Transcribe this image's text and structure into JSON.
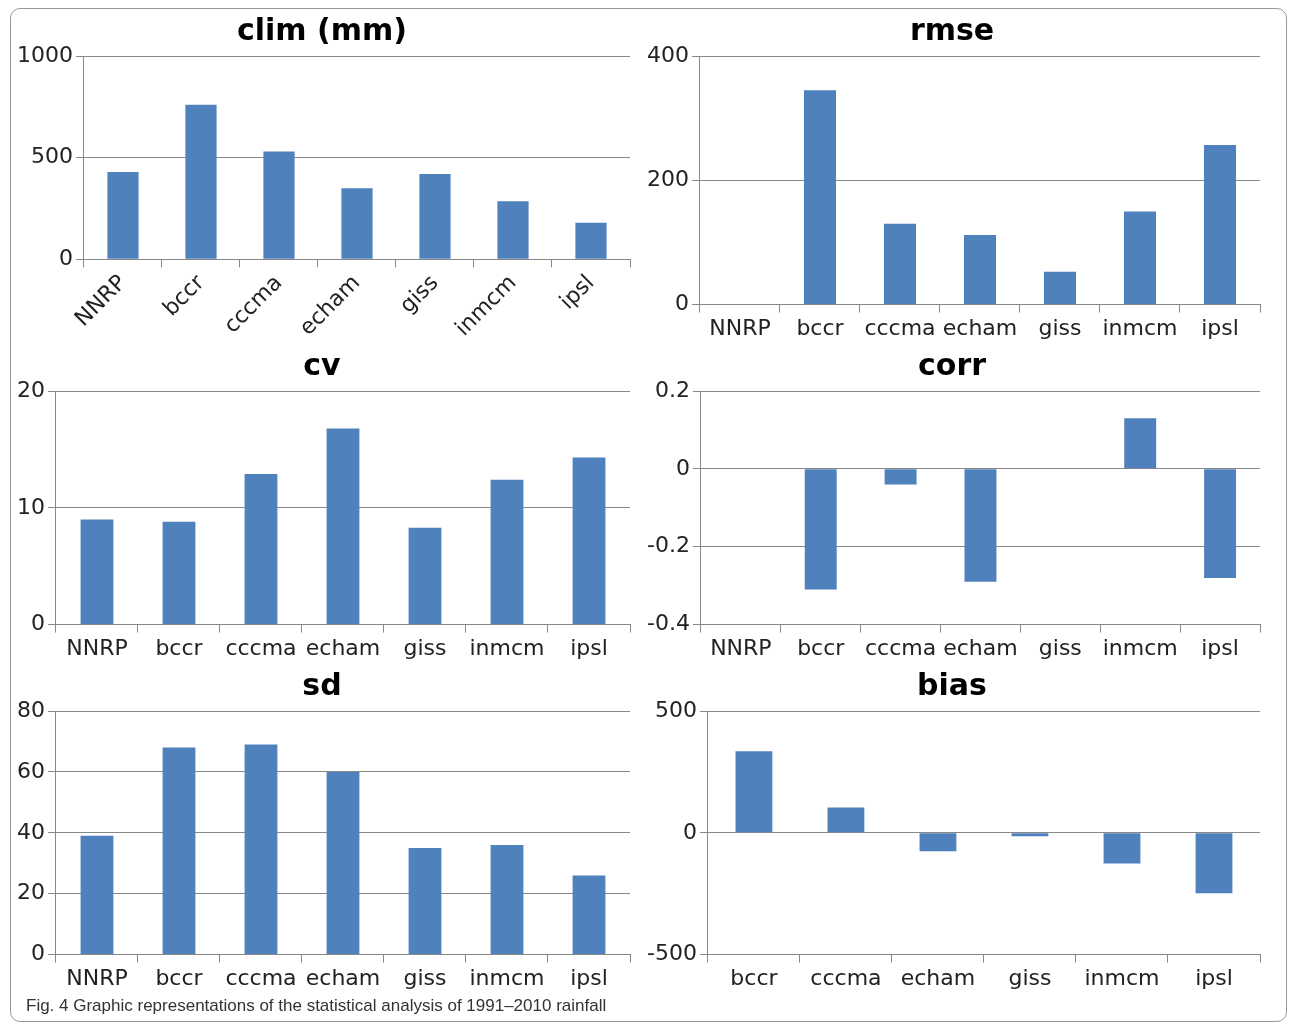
{
  "chart_data": [
    {
      "type": "bar",
      "title": "clim (mm)",
      "categories": [
        "NNRP",
        "bccr",
        "cccma",
        "echam",
        "giss",
        "inmcm",
        "ipsl"
      ],
      "values": [
        430,
        760,
        530,
        350,
        420,
        285,
        180
      ],
      "color": "#4f81bd",
      "ylim": [
        0,
        1000
      ],
      "yticks": [
        0,
        500,
        1000
      ],
      "grid": "y"
    },
    {
      "type": "bar",
      "title": "rmse",
      "categories": [
        "NNRP",
        "bccr",
        "cccma",
        "echam",
        "giss",
        "inmcm",
        "ipsl"
      ],
      "values": [
        0,
        345,
        130,
        112,
        53,
        150,
        257
      ],
      "color": "#4f81bd",
      "ylim": [
        0,
        400
      ],
      "yticks": [
        0,
        200,
        400
      ],
      "grid": "y"
    },
    {
      "type": "bar",
      "title": "cv",
      "categories": [
        "NNRP",
        "bccr",
        "cccma",
        "echam",
        "giss",
        "inmcm",
        "ipsl"
      ],
      "values": [
        9.0,
        8.8,
        12.9,
        16.8,
        8.3,
        12.4,
        14.3
      ],
      "color": "#4f81bd",
      "ylim": [
        0,
        20
      ],
      "yticks": [
        0,
        10,
        20
      ],
      "grid": "y"
    },
    {
      "type": "bar",
      "title": "corr",
      "categories": [
        "NNRP",
        "bccr",
        "cccma",
        "echam",
        "giss",
        "inmcm",
        "ipsl"
      ],
      "values": [
        0,
        -0.31,
        -0.04,
        -0.29,
        0,
        0.13,
        -0.28
      ],
      "color": "#4f81bd",
      "ylim": [
        -0.4,
        0.2
      ],
      "yticks": [
        -0.4,
        -0.2,
        0,
        0.2
      ],
      "grid": "y"
    },
    {
      "type": "bar",
      "title": "sd",
      "categories": [
        "NNRP",
        "bccr",
        "cccma",
        "echam",
        "giss",
        "inmcm",
        "ipsl"
      ],
      "values": [
        39,
        68,
        69,
        60,
        35,
        36,
        26
      ],
      "color": "#4f81bd",
      "ylim": [
        0,
        80
      ],
      "yticks": [
        0,
        20,
        40,
        60,
        80
      ],
      "grid": "y"
    },
    {
      "type": "bar",
      "title": "bias",
      "categories": [
        "bccr",
        "cccma",
        "echam",
        "giss",
        "inmcm",
        "ipsl"
      ],
      "values": [
        335,
        104,
        -76,
        -14,
        -126,
        -248
      ],
      "color": "#4f81bd",
      "ylim": [
        -500,
        500
      ],
      "yticks": [
        -500,
        0,
        500
      ],
      "grid": "y",
      "annotations": [
        "Fig. 4 Graphic representations of the statistical analysis of 1991–2010 rainfall"
      ]
    }
  ]
}
